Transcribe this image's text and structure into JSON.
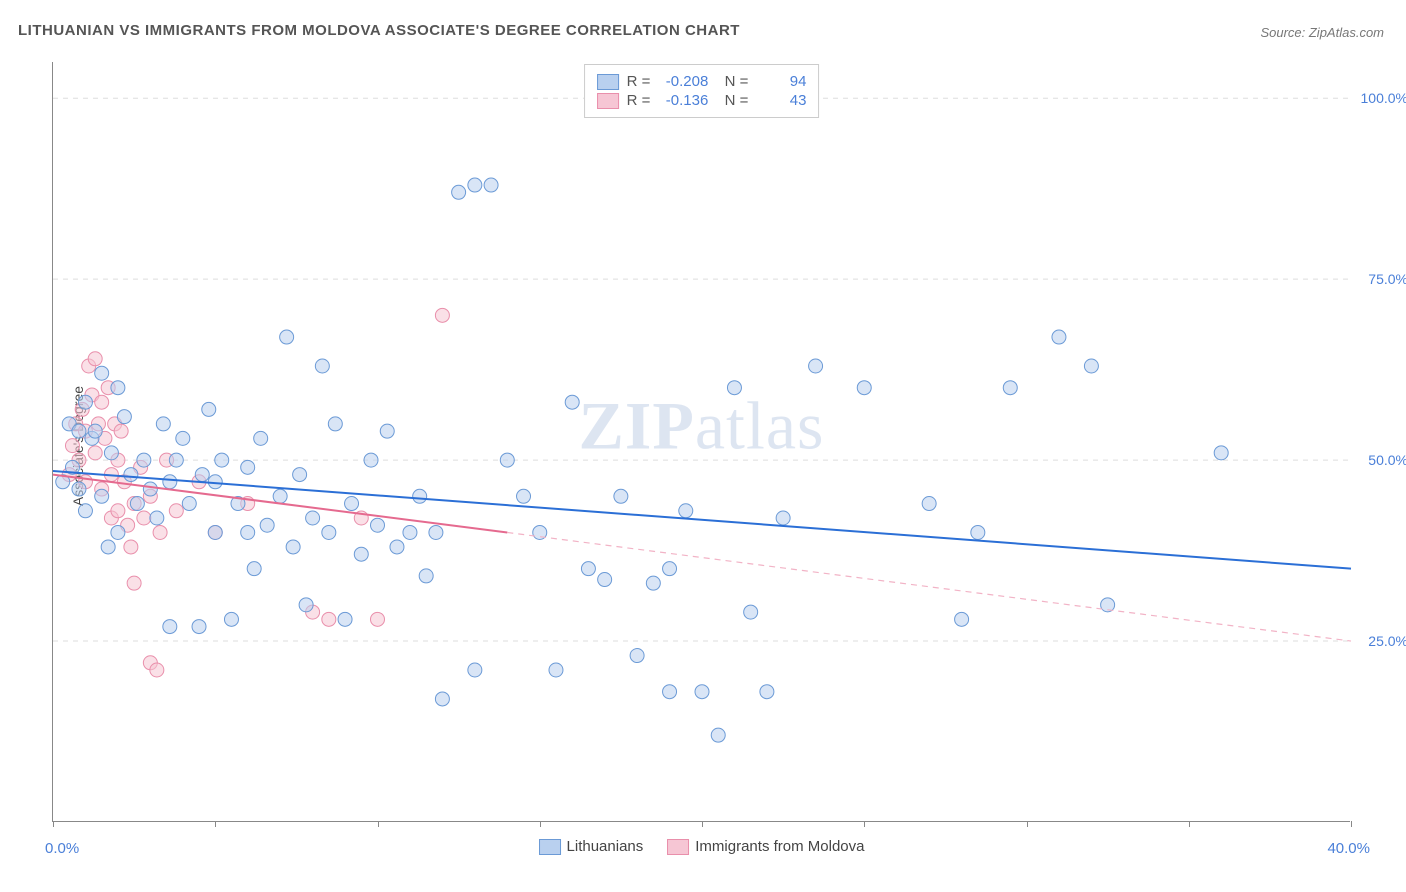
{
  "title": "LITHUANIAN VS IMMIGRANTS FROM MOLDOVA ASSOCIATE'S DEGREE CORRELATION CHART",
  "source": "Source: ZipAtlas.com",
  "watermark_a": "ZIP",
  "watermark_b": "atlas",
  "yaxis_title": "Associate's Degree",
  "chart": {
    "type": "scatter",
    "xlim": [
      0,
      40
    ],
    "ylim": [
      0,
      105
    ],
    "y_ticks": [
      25,
      50,
      75,
      100
    ],
    "y_tick_labels": [
      "25.0%",
      "50.0%",
      "75.0%",
      "100.0%"
    ],
    "x_tick_positions": [
      0,
      5,
      10,
      15,
      20,
      25,
      30,
      35,
      40
    ],
    "x_min_label": "0.0%",
    "x_max_label": "40.0%",
    "background_color": "#ffffff",
    "grid_color": "#dddddd",
    "marker_radius": 7,
    "marker_stroke_width": 1,
    "trend_line_width": 2,
    "series": [
      {
        "name": "Lithuanians",
        "fill": "#b9d0ef",
        "stroke": "#6b9ad6",
        "fill_opacity": 0.55,
        "R": "-0.208",
        "N": "94",
        "trend": {
          "x1": 0,
          "y1": 48.5,
          "x2": 40,
          "y2": 35,
          "color": "#2b6fd6",
          "dash": null
        },
        "points": [
          [
            0.3,
            47
          ],
          [
            0.5,
            55
          ],
          [
            0.6,
            49
          ],
          [
            0.8,
            54
          ],
          [
            0.8,
            46
          ],
          [
            1.0,
            58
          ],
          [
            1.0,
            43
          ],
          [
            1.2,
            53
          ],
          [
            1.3,
            54
          ],
          [
            1.5,
            62
          ],
          [
            1.5,
            45
          ],
          [
            1.7,
            38
          ],
          [
            1.8,
            51
          ],
          [
            2.0,
            60
          ],
          [
            2.0,
            40
          ],
          [
            2.2,
            56
          ],
          [
            2.4,
            48
          ],
          [
            2.6,
            44
          ],
          [
            2.8,
            50
          ],
          [
            3.0,
            46
          ],
          [
            3.2,
            42
          ],
          [
            3.4,
            55
          ],
          [
            3.6,
            47
          ],
          [
            3.6,
            27
          ],
          [
            3.8,
            50
          ],
          [
            4.0,
            53
          ],
          [
            4.2,
            44
          ],
          [
            4.5,
            27
          ],
          [
            4.6,
            48
          ],
          [
            4.8,
            57
          ],
          [
            5.0,
            40
          ],
          [
            5.0,
            47
          ],
          [
            5.2,
            50
          ],
          [
            5.5,
            28
          ],
          [
            5.7,
            44
          ],
          [
            6.0,
            49
          ],
          [
            6.0,
            40
          ],
          [
            6.2,
            35
          ],
          [
            6.4,
            53
          ],
          [
            6.6,
            41
          ],
          [
            7.0,
            45
          ],
          [
            7.2,
            67
          ],
          [
            7.4,
            38
          ],
          [
            7.6,
            48
          ],
          [
            7.8,
            30
          ],
          [
            8.0,
            42
          ],
          [
            8.3,
            63
          ],
          [
            8.5,
            40
          ],
          [
            8.7,
            55
          ],
          [
            9.0,
            28
          ],
          [
            9.2,
            44
          ],
          [
            9.5,
            37
          ],
          [
            9.8,
            50
          ],
          [
            10.0,
            41
          ],
          [
            10.3,
            54
          ],
          [
            10.6,
            38
          ],
          [
            11.0,
            40
          ],
          [
            11.3,
            45
          ],
          [
            11.5,
            34
          ],
          [
            11.8,
            40
          ],
          [
            12.0,
            17
          ],
          [
            12.5,
            87
          ],
          [
            13.0,
            88
          ],
          [
            13.0,
            21
          ],
          [
            13.5,
            88
          ],
          [
            14.0,
            50
          ],
          [
            14.5,
            45
          ],
          [
            15.0,
            40
          ],
          [
            15.5,
            21
          ],
          [
            16.0,
            58
          ],
          [
            16.5,
            35
          ],
          [
            17.0,
            33.5
          ],
          [
            17.5,
            45
          ],
          [
            18.0,
            23
          ],
          [
            18.5,
            33
          ],
          [
            19.0,
            18
          ],
          [
            19.5,
            43
          ],
          [
            20.0,
            18
          ],
          [
            20.5,
            12
          ],
          [
            21.0,
            60
          ],
          [
            21.5,
            29
          ],
          [
            22.0,
            18
          ],
          [
            22.5,
            42
          ],
          [
            23.5,
            63
          ],
          [
            25.0,
            60
          ],
          [
            27.0,
            44
          ],
          [
            28.5,
            40
          ],
          [
            29.5,
            60
          ],
          [
            31.0,
            67
          ],
          [
            32.0,
            63
          ],
          [
            32.5,
            30
          ],
          [
            36.0,
            51
          ],
          [
            28.0,
            28
          ],
          [
            19.0,
            35
          ]
        ]
      },
      {
        "name": "Immigrants from Moldova",
        "fill": "#f6c6d4",
        "stroke": "#e98fab",
        "fill_opacity": 0.55,
        "R": "-0.136",
        "N": "43",
        "trend": {
          "x1": 0,
          "y1": 48,
          "x2": 14,
          "y2": 40,
          "color": "#e56a8f",
          "dash": null
        },
        "trend_ext": {
          "x1": 14,
          "y1": 40,
          "x2": 40,
          "y2": 25,
          "color": "#f2b3c6",
          "dash": "6,5"
        },
        "points": [
          [
            0.5,
            48
          ],
          [
            0.6,
            52
          ],
          [
            0.7,
            55
          ],
          [
            0.8,
            50
          ],
          [
            0.9,
            57
          ],
          [
            1.0,
            54
          ],
          [
            1.0,
            47
          ],
          [
            1.1,
            63
          ],
          [
            1.2,
            59
          ],
          [
            1.3,
            64
          ],
          [
            1.3,
            51
          ],
          [
            1.4,
            55
          ],
          [
            1.5,
            46
          ],
          [
            1.5,
            58
          ],
          [
            1.6,
            53
          ],
          [
            1.7,
            60
          ],
          [
            1.8,
            48
          ],
          [
            1.8,
            42
          ],
          [
            1.9,
            55
          ],
          [
            2.0,
            50
          ],
          [
            2.0,
            43
          ],
          [
            2.1,
            54
          ],
          [
            2.2,
            47
          ],
          [
            2.3,
            41
          ],
          [
            2.4,
            38
          ],
          [
            2.5,
            44
          ],
          [
            2.5,
            33
          ],
          [
            2.7,
            49
          ],
          [
            2.8,
            42
          ],
          [
            3.0,
            22
          ],
          [
            3.0,
            45
          ],
          [
            3.2,
            21
          ],
          [
            3.3,
            40
          ],
          [
            3.5,
            50
          ],
          [
            3.8,
            43
          ],
          [
            4.5,
            47
          ],
          [
            5.0,
            40
          ],
          [
            6.0,
            44
          ],
          [
            8.0,
            29
          ],
          [
            8.5,
            28
          ],
          [
            9.5,
            42
          ],
          [
            10.0,
            28
          ],
          [
            12.0,
            70
          ]
        ]
      }
    ]
  },
  "legend_bottom": [
    {
      "label": "Lithuanians"
    },
    {
      "label": "Immigrants from Moldova"
    }
  ]
}
